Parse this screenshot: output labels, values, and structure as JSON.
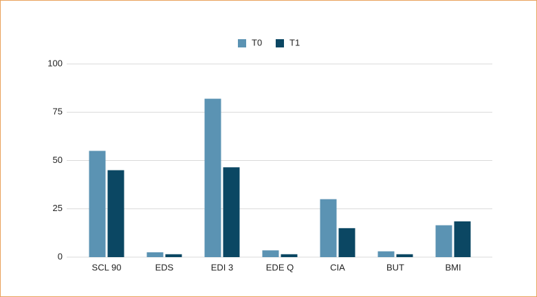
{
  "chart_data": {
    "type": "bar",
    "categories": [
      "SCL 90",
      "EDS",
      "EDI 3",
      "EDE Q",
      "CIA",
      "BUT",
      "BMI"
    ],
    "series": [
      {
        "name": "T0",
        "color": "#5b93b3",
        "values": [
          55,
          2.5,
          82,
          3.5,
          30,
          3,
          16.5
        ]
      },
      {
        "name": "T1",
        "color": "#0b4763",
        "values": [
          45,
          1.5,
          46.5,
          1.5,
          15,
          1.5,
          18.5
        ]
      }
    ],
    "ylim": [
      0,
      100
    ],
    "yticks": [
      0,
      25,
      50,
      75,
      100
    ],
    "grid": true,
    "legend": "top"
  }
}
